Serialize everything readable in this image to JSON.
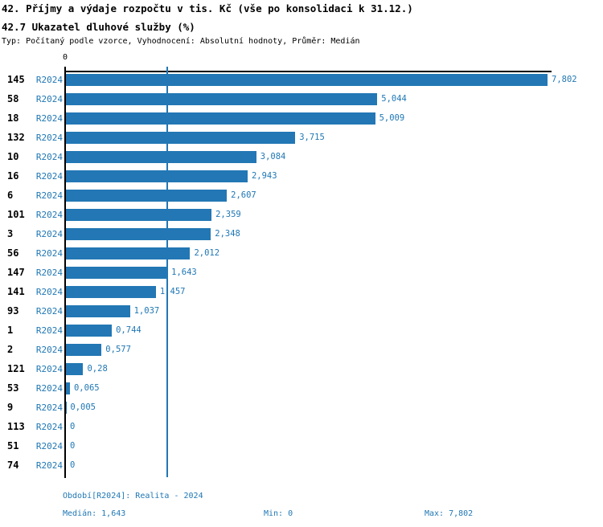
{
  "header": {
    "title_line1": "42. Příjmy a výdaje rozpočtu v tis. Kč (vše po konsolidaci k 31.12.)",
    "title_line2": "42.7 Ukazatel dluhové služby (%)",
    "meta": "Typ: Počítaný podle vzorce, Vyhodnocení: Absolutní hodnoty, Průměr: Medián"
  },
  "colors": {
    "bar_blue": "#2277b4",
    "text_blue": "#1f77b4",
    "axis_black": "#000000"
  },
  "chart_data": {
    "type": "bar",
    "orientation": "horizontal",
    "title": "42.7 Ukazatel dluhové služby (%)",
    "series_label": "R2024",
    "categories": [
      "145",
      "58",
      "18",
      "132",
      "10",
      "16",
      "6",
      "101",
      "3",
      "56",
      "147",
      "141",
      "93",
      "1",
      "2",
      "121",
      "53",
      "9",
      "113",
      "51",
      "74"
    ],
    "values": [
      7.802,
      5.044,
      5.009,
      3.715,
      3.084,
      2.943,
      2.607,
      2.359,
      2.348,
      2.012,
      1.643,
      1.457,
      1.037,
      0.744,
      0.577,
      0.28,
      0.065,
      0.005,
      0,
      0,
      0
    ],
    "value_labels": [
      "7,802",
      "5,044",
      "5,009",
      "3,715",
      "3,084",
      "2,943",
      "2,607",
      "2,359",
      "2,348",
      "2,012",
      "1,643",
      "1,457",
      "1,037",
      "0,744",
      "0,577",
      "0,28",
      "0,065",
      "0,005",
      "0",
      "0",
      "0"
    ],
    "xlim": [
      0,
      7.802
    ],
    "x_tick_labels": [
      "0"
    ],
    "median": 1.643,
    "median_label": "1,643",
    "min": 0,
    "max": 7.802,
    "grid": false,
    "legend_position": "none"
  },
  "footer": {
    "period_label": "Období[R2024]: Realita - 2024",
    "median_label": "Medián: 1,643",
    "min_label": "Min: 0",
    "max_label": "Max: 7,802"
  }
}
